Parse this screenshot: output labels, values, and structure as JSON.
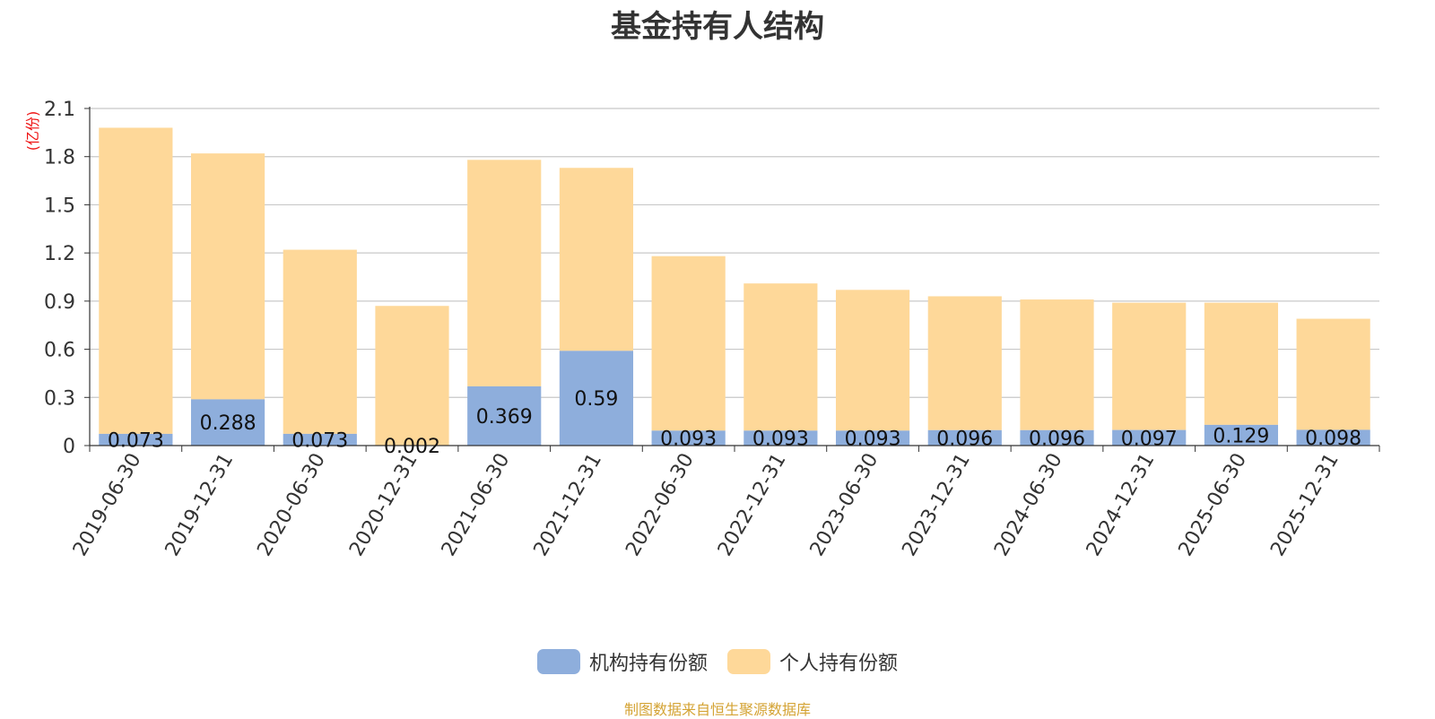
{
  "chart_data": {
    "type": "bar",
    "stacked": true,
    "title": "基金持有人结构",
    "ylabel": "(亿份)",
    "xlabel": "",
    "ylim": [
      0,
      2.1
    ],
    "yticks": [
      0,
      0.3,
      0.6,
      0.9,
      1.2,
      1.5,
      1.8,
      2.1
    ],
    "grid": true,
    "legend_position": "bottom",
    "categories": [
      "2019-06-30",
      "2019-12-31",
      "2020-06-30",
      "2020-12-31",
      "2021-06-30",
      "2021-12-31",
      "2022-06-30",
      "2022-12-31",
      "2023-06-30",
      "2023-12-31",
      "2024-06-30",
      "2024-12-31",
      "2025-06-30",
      "2025-12-31"
    ],
    "series": [
      {
        "name": "机构持有份额",
        "color": "#8eaedc",
        "values": [
          0.073,
          0.288,
          0.073,
          0.002,
          0.369,
          0.59,
          0.093,
          0.093,
          0.093,
          0.096,
          0.096,
          0.097,
          0.129,
          0.098
        ],
        "labels": [
          "0.073",
          "0.288",
          "0.073",
          "0.002",
          "0.369",
          "0.59",
          "0.093",
          "0.093",
          "0.093",
          "0.096",
          "0.096",
          "0.097",
          "0.129",
          "0.098"
        ]
      },
      {
        "name": "个人持有份额",
        "color": "#fed899",
        "values": [
          1.907,
          1.532,
          1.147,
          0.868,
          1.411,
          1.14,
          1.087,
          0.917,
          0.877,
          0.834,
          0.814,
          0.793,
          0.761,
          0.692
        ]
      }
    ],
    "source": "制图数据来自恒生聚源数据库"
  }
}
